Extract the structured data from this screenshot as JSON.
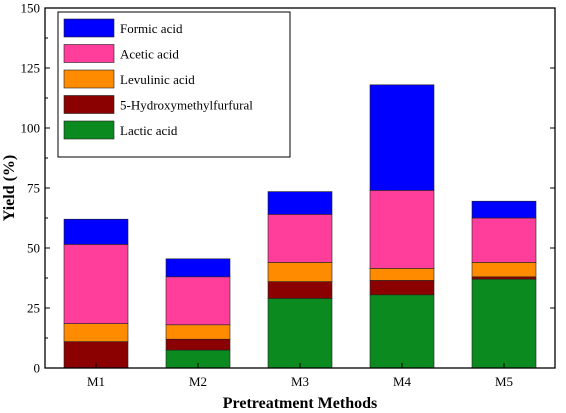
{
  "chart_data": {
    "type": "bar",
    "stacked": true,
    "categories": [
      "M1",
      "M2",
      "M3",
      "M4",
      "M5"
    ],
    "series": [
      {
        "name": "Lactic acid",
        "color": "#0b8a1f",
        "values": [
          0,
          7.5,
          29,
          30.5,
          37
        ]
      },
      {
        "name": "5-Hydroxymethylfurfural",
        "color": "#8b0000",
        "values": [
          11,
          4.5,
          7,
          6,
          1
        ]
      },
      {
        "name": "Levulinic acid",
        "color": "#ff8c00",
        "values": [
          7.5,
          6,
          8,
          5,
          6
        ]
      },
      {
        "name": "Acetic acid",
        "color": "#ff3d9a",
        "values": [
          33,
          20,
          20,
          32.5,
          18.5
        ]
      },
      {
        "name": "Formic acid",
        "color": "#0000ff",
        "values": [
          10.5,
          7.5,
          9.5,
          44,
          7
        ]
      }
    ],
    "legend_order": [
      "Formic acid",
      "Acetic acid",
      "Levulinic acid",
      "5-Hydroxymethylfurfural",
      "Lactic acid"
    ],
    "legend_position": "top-left",
    "xlabel": "Pretreatment Methods",
    "ylabel": "Yield (%)",
    "ylim": [
      0,
      150
    ],
    "yticks": [
      0,
      25,
      50,
      75,
      100,
      125,
      150
    ],
    "grid": false
  }
}
